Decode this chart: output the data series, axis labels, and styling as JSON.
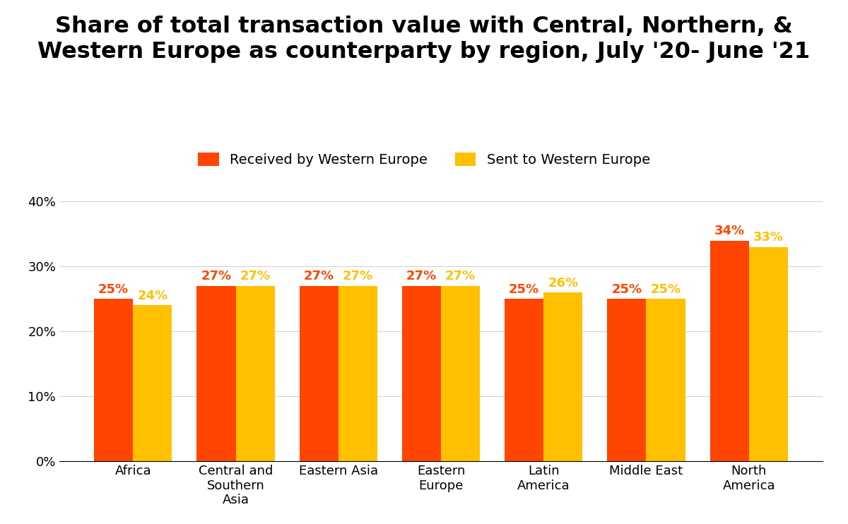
{
  "title": "Share of total transaction value with Central, Northern, &\nWestern Europe as counterparty by region, July '20- June '21",
  "categories": [
    "Africa",
    "Central and\nSouthern\nAsia",
    "Eastern Asia",
    "Eastern\nEurope",
    "Latin\nAmerica",
    "Middle East",
    "North\nAmerica"
  ],
  "received": [
    25,
    27,
    27,
    27,
    25,
    25,
    34
  ],
  "sent": [
    24,
    27,
    27,
    27,
    26,
    25,
    33
  ],
  "received_color": "#FF4500",
  "sent_color": "#FFC000",
  "received_label": "Received by Western Europe",
  "sent_label": "Sent to Western Europe",
  "ylim": [
    0,
    42
  ],
  "yticks": [
    0,
    10,
    20,
    30,
    40
  ],
  "bar_width": 0.38,
  "background_color": "#ffffff",
  "title_fontsize": 23,
  "tick_fontsize": 13,
  "legend_fontsize": 14,
  "annotation_fontsize": 13
}
